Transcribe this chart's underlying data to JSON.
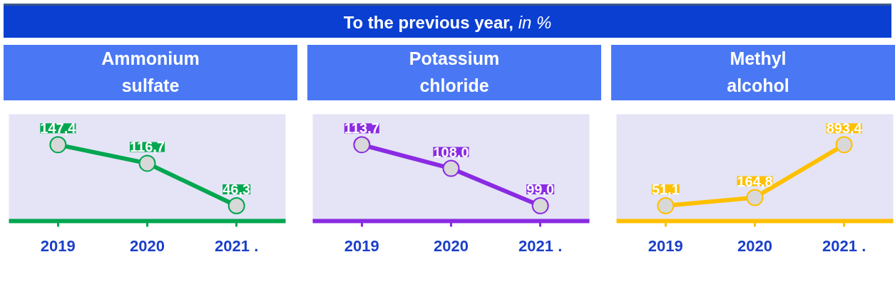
{
  "chart_data": [
    {
      "type": "line",
      "title": "Ammonium\nsulfate",
      "annotations": [
        "To the previous year, in %"
      ],
      "categories": [
        "2019",
        "2020",
        "2021 ."
      ],
      "tick_labels": "x",
      "marker": "circle",
      "series": [
        {
          "color": "#00a650",
          "values": [
            147.4,
            116.7,
            46.3
          ],
          "value_labels": [
            "147,4",
            "116,7",
            "46,3"
          ]
        }
      ]
    },
    {
      "type": "line",
      "title": "Potassium\nchloride",
      "categories": [
        "2019",
        "2020",
        "2021 ."
      ],
      "tick_labels": "x",
      "marker": "circle",
      "series": [
        {
          "color": "#8a2be2",
          "values": [
            113.7,
            108.0,
            99.0
          ],
          "value_labels": [
            "113,7",
            "108,0",
            "99,0"
          ]
        }
      ]
    },
    {
      "type": "line",
      "title": "Methyl\nalcohol",
      "categories": [
        "2019",
        "2020",
        "2021 ."
      ],
      "tick_labels": "x",
      "marker": "circle",
      "series": [
        {
          "color": "#ffc000",
          "values": [
            51.1,
            164.8,
            893.4
          ],
          "value_labels": [
            "51,1",
            "164,8",
            "893,4"
          ]
        }
      ]
    }
  ]
}
